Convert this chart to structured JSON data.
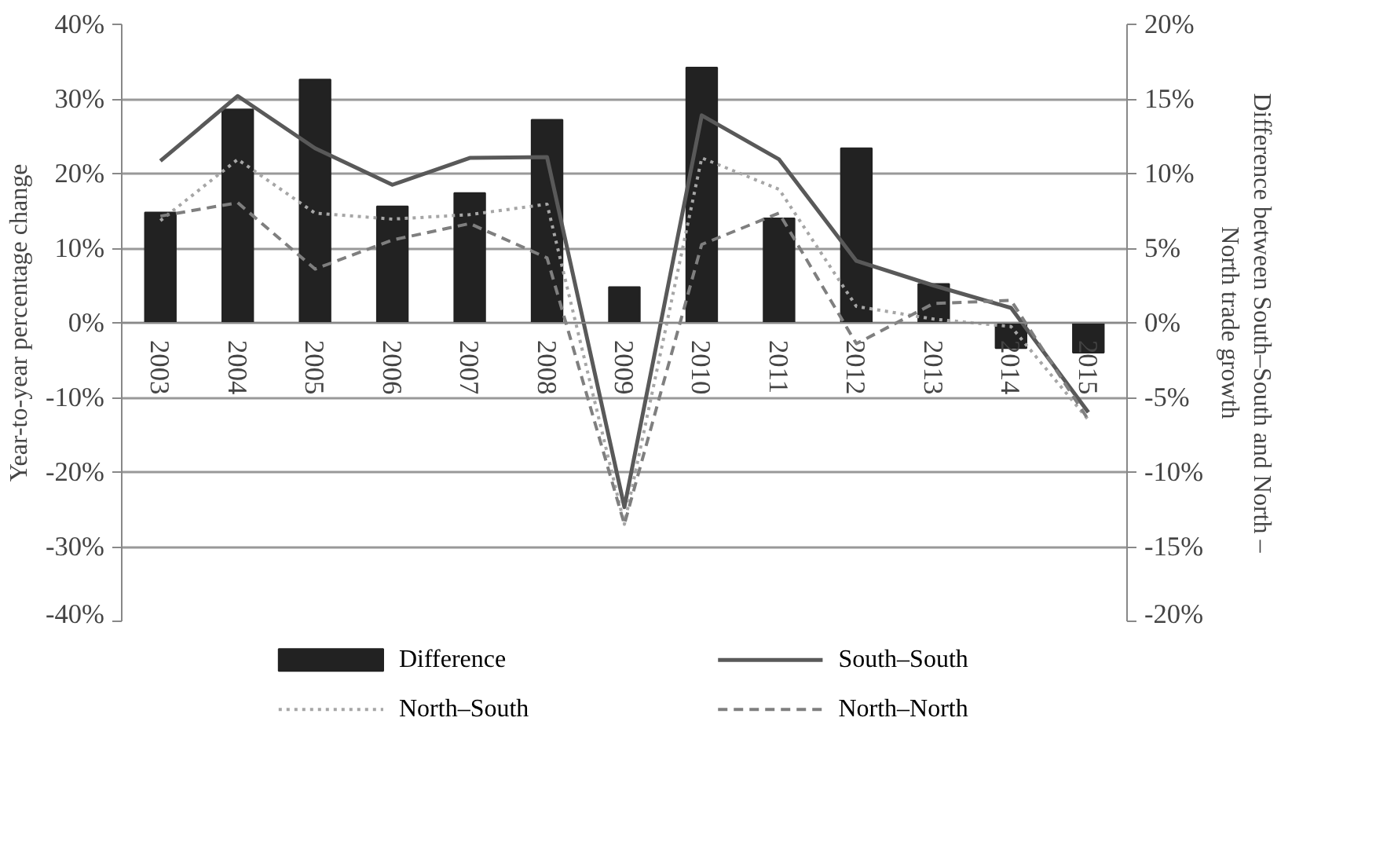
{
  "chart_data": {
    "type": "line",
    "categories": [
      "2003",
      "2004",
      "2005",
      "2006",
      "2007",
      "2008",
      "2009",
      "2010",
      "2011",
      "2012",
      "2013",
      "2014",
      "2015"
    ],
    "ylabel": "Year-to-year percentage change",
    "y2label": "Difference between South–South and North –\nNorth trade growth",
    "ylim": [
      -40,
      40
    ],
    "yticks": [
      {
        "value": -40,
        "label": "-40%"
      },
      {
        "value": -30,
        "label": "-30%"
      },
      {
        "value": -20,
        "label": "-20%"
      },
      {
        "value": -10,
        "label": "-10%"
      },
      {
        "value": 0,
        "label": "0%"
      },
      {
        "value": 10,
        "label": "10%"
      },
      {
        "value": 20,
        "label": "20%"
      },
      {
        "value": 30,
        "label": "30%"
      },
      {
        "value": 40,
        "label": "40%"
      }
    ],
    "y2lim": [
      -20,
      20
    ],
    "y2ticks": [
      {
        "value": -20,
        "label": "-20%"
      },
      {
        "value": -15,
        "label": "-15%"
      },
      {
        "value": -10,
        "label": "-10%"
      },
      {
        "value": -5,
        "label": "-5%"
      },
      {
        "value": 0,
        "label": "0%"
      },
      {
        "value": 5,
        "label": "5%"
      },
      {
        "value": 10,
        "label": "10%"
      },
      {
        "value": 15,
        "label": "15%"
      },
      {
        "value": 20,
        "label": "20%"
      }
    ],
    "grid": "y",
    "legend": "bottom",
    "series": [
      {
        "name": "Difference",
        "type": "bar",
        "axis": "y2",
        "color": "#222222",
        "values": [
          7.4,
          14.3,
          16.3,
          7.8,
          8.7,
          13.6,
          2.4,
          17.1,
          7.0,
          11.7,
          2.6,
          -1.7,
          -2.0
        ]
      },
      {
        "name": "South–South",
        "line_style": "solid",
        "color": "#595959",
        "values": [
          21.7,
          30.4,
          23.4,
          18.5,
          22.1,
          22.2,
          -24.7,
          27.8,
          21.9,
          8.3,
          5.0,
          2.0,
          -12.0
        ]
      },
      {
        "name": "North–South",
        "line_style": "dotted",
        "color": "#a6a6a6",
        "values": [
          13.7,
          21.9,
          14.7,
          13.9,
          14.5,
          15.9,
          -27.0,
          22.1,
          17.9,
          2.2,
          0.5,
          -0.5,
          -13.0
        ]
      },
      {
        "name": "North–North",
        "line_style": "dashed",
        "color": "#7f7f7f",
        "values": [
          14.3,
          16.1,
          7.2,
          11.1,
          13.3,
          8.7,
          -27.0,
          10.5,
          14.7,
          -2.8,
          2.6,
          3.0,
          -13.0
        ]
      }
    ]
  }
}
